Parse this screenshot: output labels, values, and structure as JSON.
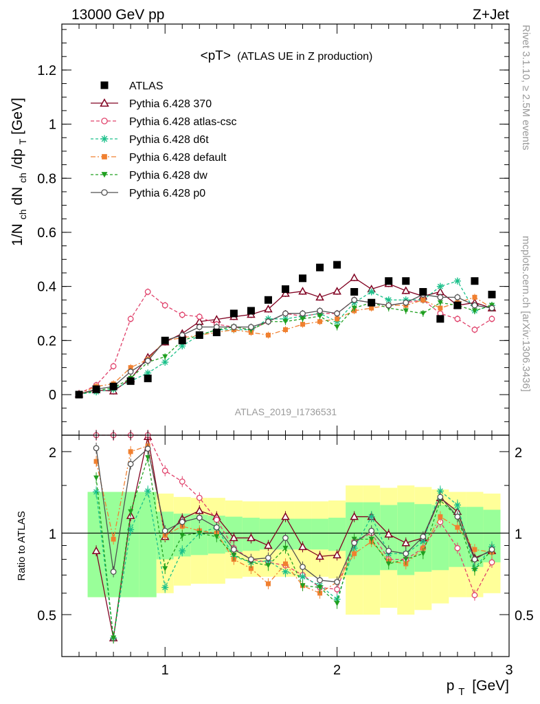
{
  "header": {
    "left": "13000 GeV pp",
    "right": "Z+Jet"
  },
  "side_labels": {
    "rivet": "Rivet 3.1.10, ≥ 2.5M events",
    "mcplots": "mcplots.cern.ch [arXiv:1306.3436]"
  },
  "chart_data": {
    "type": "scatter",
    "title_main": "<pT>",
    "title_sub": "(ATLAS UE in Z production)",
    "analysis_id": "ATLAS_2019_I1736531",
    "xlabel_main": "p",
    "xlabel_sub": "T",
    "xlabel_unit": "[GeV]",
    "ylabel": "1/N_ch dN_ch/dp_T [GeV]",
    "ylabel_parts": [
      "1/N",
      "ch",
      " dN",
      "ch",
      "/dp",
      "T",
      " [GeV]"
    ],
    "ratio_ylabel": "Ratio to ATLAS",
    "xlim": [
      0.4,
      3.0
    ],
    "ylim": [
      -0.15,
      1.37
    ],
    "ratio_ylim": [
      0.35,
      2.3
    ],
    "x_ticks": [
      {
        "value": 1,
        "label": "1"
      },
      {
        "value": 2,
        "label": "2"
      },
      {
        "value": 3,
        "label": "3"
      }
    ],
    "y_ticks": [
      {
        "value": 0,
        "label": "0"
      },
      {
        "value": 0.2,
        "label": "0.2"
      },
      {
        "value": 0.4,
        "label": "0.4"
      },
      {
        "value": 0.6,
        "label": "0.6"
      },
      {
        "value": 0.8,
        "label": "0.8"
      },
      {
        "value": 1,
        "label": "1"
      },
      {
        "value": 1.2,
        "label": "1.2"
      }
    ],
    "ratio_ticks": [
      {
        "value": 0.5,
        "label": "0.5"
      },
      {
        "value": 1,
        "label": "1"
      },
      {
        "value": 2,
        "label": "2"
      }
    ],
    "log_ratio_axis": true,
    "grid": false,
    "legend_position": "top-left",
    "x": [
      0.5,
      0.6,
      0.7,
      0.8,
      0.9,
      1.0,
      1.1,
      1.2,
      1.3,
      1.4,
      1.5,
      1.6,
      1.7,
      1.8,
      1.9,
      2.0,
      2.1,
      2.2,
      2.3,
      2.4,
      2.5,
      2.6,
      2.7,
      2.8,
      2.9
    ],
    "data": {
      "name": "ATLAS",
      "color": "#000000",
      "values": [
        0.0,
        0.02,
        0.03,
        0.05,
        0.06,
        0.2,
        0.2,
        0.22,
        0.23,
        0.3,
        0.31,
        0.35,
        0.39,
        0.43,
        0.47,
        0.48,
        0.38,
        0.34,
        0.42,
        0.42,
        0.38,
        0.28,
        0.33,
        0.42,
        0.37
      ],
      "band_inner": [
        0.42,
        0.42,
        0.42,
        0.42,
        0.42,
        0.2,
        0.18,
        0.17,
        0.16,
        0.15,
        0.14,
        0.13,
        0.13,
        0.13,
        0.13,
        0.14,
        0.3,
        0.3,
        0.27,
        0.3,
        0.28,
        0.27,
        0.25,
        0.25,
        0.22
      ],
      "band_outer": [
        0.42,
        0.42,
        0.42,
        0.42,
        0.42,
        0.4,
        0.36,
        0.35,
        0.35,
        0.32,
        0.31,
        0.31,
        0.31,
        0.31,
        0.31,
        0.32,
        0.5,
        0.5,
        0.47,
        0.5,
        0.48,
        0.45,
        0.42,
        0.42,
        0.4
      ]
    },
    "series": [
      {
        "name": "Pythia 6.428 370",
        "color": "#800020",
        "marker": "triangle-open",
        "dash": "",
        "values": [
          0.002,
          0.017,
          0.013,
          0.058,
          0.138,
          0.194,
          0.226,
          0.27,
          0.278,
          0.288,
          0.296,
          0.316,
          0.374,
          0.382,
          0.36,
          0.382,
          0.432,
          0.39,
          0.41,
          0.384,
          0.364,
          0.38,
          0.33,
          0.34,
          0.32
        ],
        "ratio": [
          null,
          0.86,
          0.41,
          1.16,
          2.27,
          0.97,
          1.13,
          1.21,
          1.15,
          0.96,
          0.96,
          0.9,
          1.15,
          0.89,
          0.82,
          0.83,
          1.15,
          1.15,
          0.99,
          0.92,
          0.96,
          1.35,
          1.2,
          0.81,
          0.86
        ]
      },
      {
        "name": "Pythia 6.428 atlas-csc",
        "color": "#e0406a",
        "marker": "circle-open",
        "dash": "5,3",
        "values": [
          0.004,
          0.035,
          0.105,
          0.28,
          0.38,
          0.33,
          0.295,
          0.288,
          0.26,
          0.25,
          0.24,
          0.27,
          0.3,
          0.29,
          0.3,
          0.3,
          0.35,
          0.34,
          0.33,
          0.34,
          0.35,
          0.3,
          0.28,
          0.24,
          0.28
        ],
        "ratio": [
          null,
          2.3,
          2.4,
          2.3,
          2.3,
          1.7,
          1.55,
          1.35,
          1.12,
          0.88,
          0.8,
          0.78,
          0.76,
          0.7,
          0.63,
          0.62,
          0.93,
          1.0,
          0.8,
          0.8,
          0.88,
          1.1,
          0.88,
          0.59,
          0.78
        ]
      },
      {
        "name": "Pythia 6.428 d6t",
        "color": "#1ac08a",
        "marker": "asterisk",
        "dash": "4,3",
        "values": [
          0.002,
          0.01,
          0.02,
          0.05,
          0.08,
          0.12,
          0.18,
          0.22,
          0.24,
          0.24,
          0.24,
          0.28,
          0.28,
          0.29,
          0.3,
          0.27,
          0.34,
          0.38,
          0.35,
          0.35,
          0.35,
          0.4,
          0.42,
          0.31,
          0.33
        ],
        "ratio": [
          null,
          1.42,
          0.41,
          1.03,
          1.43,
          0.63,
          0.86,
          1.0,
          1.05,
          0.82,
          0.78,
          0.79,
          0.72,
          0.69,
          0.64,
          0.57,
          0.88,
          1.15,
          0.84,
          0.84,
          0.93,
          1.43,
          1.27,
          0.74,
          0.89
        ]
      },
      {
        "name": "Pythia 6.428 default",
        "color": "#f08030",
        "marker": "square-filled",
        "dash": "7,3,2,3",
        "values": [
          0.002,
          0.03,
          0.04,
          0.1,
          0.13,
          0.2,
          0.21,
          0.22,
          0.23,
          0.24,
          0.23,
          0.22,
          0.24,
          0.26,
          0.27,
          0.28,
          0.31,
          0.32,
          0.33,
          0.33,
          0.35,
          0.32,
          0.34,
          0.36,
          0.32
        ],
        "ratio": [
          null,
          1.84,
          0.95,
          2.0,
          2.1,
          0.98,
          1.06,
          1.02,
          1.0,
          0.8,
          0.74,
          0.65,
          0.77,
          0.64,
          0.6,
          0.66,
          0.84,
          0.93,
          0.79,
          0.77,
          0.88,
          1.15,
          1.05,
          0.87,
          0.85
        ]
      },
      {
        "name": "Pythia 6.428 dw",
        "color": "#20a020",
        "marker": "triangle-down-filled",
        "dash": "4,3",
        "values": [
          0.002,
          0.015,
          0.025,
          0.06,
          0.12,
          0.14,
          0.2,
          0.22,
          0.24,
          0.25,
          0.24,
          0.27,
          0.27,
          0.28,
          0.29,
          0.25,
          0.32,
          0.34,
          0.32,
          0.31,
          0.3,
          0.34,
          0.33,
          0.31,
          0.33
        ],
        "ratio": [
          null,
          1.6,
          0.41,
          1.2,
          1.9,
          0.74,
          0.98,
          1.0,
          0.97,
          0.83,
          0.78,
          0.76,
          0.88,
          0.64,
          0.63,
          0.55,
          0.95,
          0.95,
          0.77,
          0.8,
          0.84,
          1.32,
          1.15,
          0.73,
          0.87
        ]
      },
      {
        "name": "Pythia 6.428 p0",
        "color": "#505050",
        "marker": "circle-open",
        "dash": "",
        "values": [
          0.002,
          0.02,
          0.03,
          0.085,
          0.125,
          0.2,
          0.22,
          0.25,
          0.25,
          0.25,
          0.25,
          0.27,
          0.3,
          0.3,
          0.31,
          0.3,
          0.35,
          0.34,
          0.33,
          0.34,
          0.37,
          0.36,
          0.36,
          0.33,
          0.32
        ],
        "ratio": [
          null,
          2.06,
          0.72,
          1.8,
          2.05,
          1.02,
          1.1,
          1.14,
          1.05,
          0.87,
          0.8,
          0.81,
          0.96,
          0.75,
          0.67,
          0.66,
          0.92,
          1.02,
          0.86,
          0.84,
          0.97,
          1.36,
          1.15,
          0.8,
          0.87
        ]
      }
    ]
  }
}
